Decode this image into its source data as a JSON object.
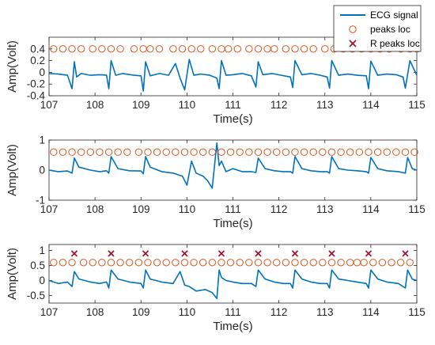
{
  "legend": {
    "entries": [
      {
        "label": "ECG signal",
        "marker": "line",
        "color": "#0072BD"
      },
      {
        "label": "peaks loc",
        "marker": "circle",
        "color": "#D95319"
      },
      {
        "label": "R peaks loc",
        "marker": "x",
        "color": "#A2142F"
      }
    ],
    "placement": "top-right"
  },
  "colors": {
    "signal": "#0072BD",
    "peaks": "#D95319",
    "rpeaks": "#A2142F",
    "axis": "#262626"
  },
  "chart_data": [
    {
      "type": "line",
      "xlabel": "Time(s)",
      "ylabel": "Amp(Volt)",
      "xlim": [
        107,
        115
      ],
      "ylim": [
        -0.4,
        0.6
      ],
      "xticks": [
        "107",
        "108",
        "109",
        "110",
        "111",
        "112",
        "113",
        "114",
        "115"
      ],
      "yticks": [
        "0.4",
        "0.2",
        "0",
        "-0.2",
        "-0.4"
      ],
      "ytick_values": [
        0.4,
        0.2,
        0,
        -0.2,
        -0.4
      ],
      "series": [
        {
          "name": "ECG signal",
          "kind": "line",
          "x": [
            107.0,
            107.2,
            107.4,
            107.5,
            107.55,
            107.6,
            107.7,
            107.9,
            108.1,
            108.25,
            108.3,
            108.35,
            108.45,
            108.6,
            108.85,
            109.0,
            109.05,
            109.1,
            109.2,
            109.4,
            109.6,
            109.75,
            109.85,
            109.95,
            110.05,
            110.15,
            110.3,
            110.5,
            110.65,
            110.7,
            110.75,
            110.85,
            111.0,
            111.2,
            111.4,
            111.5,
            111.55,
            111.65,
            111.85,
            112.05,
            112.25,
            112.3,
            112.35,
            112.5,
            112.7,
            112.9,
            113.05,
            113.1,
            113.15,
            113.3,
            113.5,
            113.7,
            113.9,
            113.95,
            114.0,
            114.15,
            114.35,
            114.55,
            114.7,
            114.75,
            114.85,
            115.0
          ],
          "y": [
            -0.02,
            -0.03,
            -0.05,
            -0.28,
            0.18,
            -0.08,
            -0.02,
            -0.05,
            -0.04,
            -0.05,
            -0.28,
            0.2,
            -0.05,
            -0.02,
            -0.05,
            -0.06,
            -0.32,
            0.18,
            -0.06,
            -0.02,
            -0.05,
            0.15,
            -0.1,
            -0.3,
            0.22,
            -0.05,
            -0.03,
            -0.05,
            -0.1,
            -0.28,
            0.2,
            -0.05,
            -0.04,
            -0.02,
            -0.06,
            -0.25,
            0.18,
            -0.04,
            -0.02,
            -0.05,
            -0.08,
            -0.26,
            0.2,
            -0.04,
            -0.02,
            -0.05,
            -0.08,
            -0.27,
            0.2,
            -0.05,
            -0.03,
            -0.05,
            -0.06,
            -0.28,
            0.19,
            -0.05,
            -0.03,
            -0.04,
            -0.08,
            -0.27,
            0.2,
            -0.05
          ]
        },
        {
          "name": "peaks loc",
          "kind": "circle",
          "x": [
            107.1,
            107.3,
            107.5,
            107.7,
            107.95,
            108.15,
            108.35,
            108.55,
            108.85,
            109.05,
            109.2,
            109.4,
            109.7,
            109.9,
            110.1,
            110.3,
            110.55,
            110.75,
            110.9,
            111.1,
            111.35,
            111.55,
            111.75,
            111.9,
            112.15,
            112.35,
            112.55,
            112.75,
            113.0,
            113.2,
            113.4,
            113.6,
            113.8,
            114.0,
            114.2,
            114.4,
            114.65,
            114.85,
            115.0
          ],
          "y": [
            0.4,
            0.4,
            0.4,
            0.4,
            0.4,
            0.4,
            0.4,
            0.4,
            0.4,
            0.4,
            0.4,
            0.4,
            0.4,
            0.4,
            0.4,
            0.4,
            0.4,
            0.4,
            0.4,
            0.4,
            0.4,
            0.4,
            0.4,
            0.4,
            0.4,
            0.4,
            0.4,
            0.4,
            0.4,
            0.4,
            0.4,
            0.4,
            0.4,
            0.4,
            0.4,
            0.4,
            0.4,
            0.4,
            0.4
          ]
        }
      ]
    },
    {
      "type": "line",
      "xlabel": "Time(s)",
      "ylabel": "Amp(Volt)",
      "xlim": [
        107,
        115
      ],
      "ylim": [
        -1,
        1
      ],
      "xticks": [
        "107",
        "108",
        "109",
        "110",
        "111",
        "112",
        "113",
        "114",
        "115"
      ],
      "yticks": [
        "1",
        "0",
        "-1"
      ],
      "ytick_values": [
        1,
        0,
        -1
      ],
      "series": [
        {
          "name": "ECG signal",
          "kind": "line",
          "x": [
            107.0,
            107.2,
            107.4,
            107.5,
            107.55,
            107.65,
            107.9,
            108.1,
            108.25,
            108.3,
            108.35,
            108.5,
            108.75,
            109.0,
            109.05,
            109.1,
            109.2,
            109.45,
            109.7,
            109.9,
            110.0,
            110.1,
            110.2,
            110.35,
            110.45,
            110.55,
            110.65,
            110.7,
            110.75,
            110.85,
            111.0,
            111.2,
            111.4,
            111.5,
            111.55,
            111.7,
            111.9,
            112.1,
            112.25,
            112.3,
            112.35,
            112.5,
            112.7,
            112.9,
            113.05,
            113.1,
            113.15,
            113.3,
            113.5,
            113.7,
            113.9,
            113.95,
            114.0,
            114.15,
            114.35,
            114.6,
            114.75,
            114.8,
            114.9,
            115.0
          ],
          "y": [
            0.0,
            -0.05,
            -0.03,
            -0.1,
            0.4,
            0.1,
            0.0,
            -0.05,
            -0.02,
            -0.1,
            0.45,
            0.05,
            -0.02,
            -0.03,
            -0.12,
            0.45,
            0.1,
            -0.05,
            -0.1,
            -0.2,
            -0.5,
            0.3,
            -0.1,
            -0.2,
            -0.35,
            -0.6,
            0.9,
            0.15,
            0.3,
            -0.05,
            0.05,
            -0.05,
            -0.05,
            -0.08,
            0.4,
            0.05,
            -0.02,
            -0.05,
            -0.05,
            -0.1,
            0.45,
            0.05,
            -0.02,
            -0.05,
            -0.05,
            -0.1,
            0.45,
            0.05,
            0.0,
            -0.02,
            -0.05,
            -0.1,
            0.42,
            0.05,
            -0.02,
            -0.05,
            -0.1,
            0.42,
            0.05,
            0.0
          ]
        },
        {
          "name": "peaks loc",
          "kind": "circle",
          "x": [
            107.1,
            107.3,
            107.5,
            107.7,
            107.9,
            108.1,
            108.3,
            108.5,
            108.7,
            108.95,
            109.15,
            109.35,
            109.55,
            109.75,
            109.95,
            110.15,
            110.35,
            110.55,
            110.75,
            110.95,
            111.15,
            111.35,
            111.55,
            111.75,
            111.95,
            112.15,
            112.35,
            112.55,
            112.75,
            112.95,
            113.15,
            113.35,
            113.55,
            113.75,
            113.95,
            114.15,
            114.35,
            114.55,
            114.75,
            114.95
          ],
          "y": [
            0.6,
            0.6,
            0.6,
            0.6,
            0.6,
            0.6,
            0.6,
            0.6,
            0.6,
            0.6,
            0.6,
            0.6,
            0.6,
            0.6,
            0.6,
            0.6,
            0.6,
            0.6,
            0.6,
            0.6,
            0.6,
            0.6,
            0.6,
            0.6,
            0.6,
            0.6,
            0.6,
            0.6,
            0.6,
            0.6,
            0.6,
            0.6,
            0.6,
            0.6,
            0.6,
            0.6,
            0.6,
            0.6,
            0.6,
            0.6
          ]
        }
      ]
    },
    {
      "type": "line",
      "xlabel": "Time(s)",
      "ylabel": "Amp(Volt)",
      "xlim": [
        107,
        115
      ],
      "ylim": [
        -0.75,
        1.2
      ],
      "xticks": [
        "107",
        "108",
        "109",
        "110",
        "111",
        "112",
        "113",
        "114",
        "115"
      ],
      "yticks": [
        "1",
        "0.5",
        "0",
        "-0.5"
      ],
      "ytick_values": [
        1,
        0.5,
        0,
        -0.5
      ],
      "series": [
        {
          "name": "ECG signal",
          "kind": "line",
          "x": [
            107.0,
            107.2,
            107.4,
            107.5,
            107.55,
            107.65,
            107.9,
            108.1,
            108.25,
            108.3,
            108.35,
            108.5,
            108.75,
            109.0,
            109.05,
            109.1,
            109.2,
            109.45,
            109.7,
            109.85,
            109.95,
            110.05,
            110.2,
            110.4,
            110.55,
            110.65,
            110.7,
            110.75,
            110.85,
            111.0,
            111.2,
            111.4,
            111.5,
            111.55,
            111.7,
            111.9,
            112.1,
            112.25,
            112.3,
            112.35,
            112.5,
            112.7,
            112.9,
            113.05,
            113.1,
            113.15,
            113.3,
            113.5,
            113.7,
            113.9,
            113.95,
            114.0,
            114.15,
            114.35,
            114.6,
            114.75,
            114.8,
            114.9,
            115.0
          ],
          "y": [
            0.0,
            -0.1,
            -0.05,
            -0.2,
            0.3,
            0.05,
            -0.05,
            -0.1,
            -0.05,
            -0.25,
            0.35,
            0.05,
            -0.05,
            -0.1,
            -0.25,
            0.35,
            0.05,
            -0.05,
            -0.1,
            0.3,
            -0.15,
            -0.2,
            -0.35,
            -0.3,
            -0.4,
            -0.6,
            0.35,
            0.1,
            0.0,
            -0.05,
            -0.1,
            -0.1,
            -0.2,
            0.35,
            0.05,
            -0.05,
            -0.1,
            -0.1,
            -0.25,
            0.35,
            0.05,
            -0.05,
            -0.1,
            -0.1,
            -0.25,
            0.35,
            0.05,
            0.0,
            -0.05,
            -0.1,
            -0.25,
            0.35,
            0.05,
            -0.05,
            -0.1,
            -0.25,
            0.35,
            0.05,
            0.0
          ]
        },
        {
          "name": "peaks loc",
          "kind": "circle",
          "x": [
            107.1,
            107.3,
            107.5,
            107.75,
            107.95,
            108.15,
            108.35,
            108.55,
            108.75,
            108.95,
            109.15,
            109.35,
            109.55,
            109.75,
            109.95,
            110.15,
            110.35,
            110.55,
            110.75,
            110.95,
            111.15,
            111.35,
            111.55,
            111.75,
            111.95,
            112.15,
            112.35,
            112.55,
            112.75,
            112.95,
            113.15,
            113.35,
            113.55,
            113.7,
            113.85,
            114.05,
            114.25,
            114.45,
            114.65,
            114.85
          ],
          "y": [
            0.6,
            0.6,
            0.6,
            0.6,
            0.6,
            0.6,
            0.6,
            0.6,
            0.6,
            0.6,
            0.6,
            0.6,
            0.6,
            0.6,
            0.6,
            0.6,
            0.6,
            0.6,
            0.6,
            0.6,
            0.6,
            0.6,
            0.6,
            0.6,
            0.6,
            0.6,
            0.6,
            0.6,
            0.6,
            0.6,
            0.6,
            0.6,
            0.6,
            0.6,
            0.6,
            0.6,
            0.6,
            0.6,
            0.6,
            0.6
          ]
        },
        {
          "name": "R peaks loc",
          "kind": "x",
          "x": [
            107.55,
            108.35,
            109.1,
            109.95,
            110.75,
            111.55,
            112.35,
            113.15,
            113.95,
            114.75
          ],
          "y": [
            0.9,
            0.9,
            0.9,
            0.9,
            0.9,
            0.9,
            0.9,
            0.9,
            0.9,
            0.9
          ]
        }
      ]
    }
  ]
}
